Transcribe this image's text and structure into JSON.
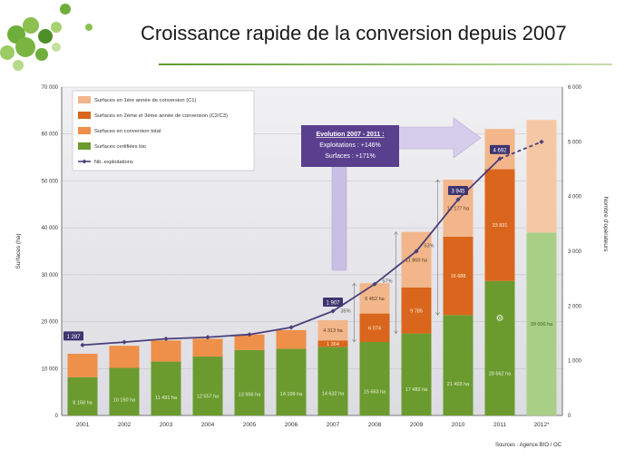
{
  "slide": {
    "title": "Croissance rapide de la conversion depuis 2007",
    "source": "Sources : Agence BIO / OC",
    "logo": "green-leaf-cluster"
  },
  "chart_data": {
    "type": "bar",
    "stacked": true,
    "categories": [
      "2001",
      "2002",
      "2003",
      "2004",
      "2005",
      "2006",
      "2007",
      "2008",
      "2009",
      "2010",
      "2011",
      "2012*"
    ],
    "ylabel": "Surfaces (ha)",
    "y2label": "Nombre d'opérateurs",
    "ylim": [
      0,
      70000
    ],
    "y2lim": [
      0,
      6000
    ],
    "yticks": [
      "0",
      "10 000",
      "20 000",
      "30 000",
      "40 000",
      "50 000",
      "60 000",
      "70 000"
    ],
    "y2ticks": [
      "0",
      "1 000",
      "2 000",
      "3 000",
      "4 000",
      "5 000",
      "6 000"
    ],
    "legend": {
      "placement": "top-left",
      "items": [
        {
          "label": "Surfaces en 1ère année de conversion (C1)",
          "color": "#f2b68a"
        },
        {
          "label": "Surfaces en 2ème et 3ème année de conversion (C2/C3)",
          "color": "#d9661c"
        },
        {
          "label": "Surfaces en conversion total",
          "color": "#ee8f4a"
        },
        {
          "label": "Surfaces certifiées bio",
          "color": "#6b9b2f"
        },
        {
          "label": "Nb. exploitations",
          "color": "#4a3f7a"
        }
      ]
    },
    "series": [
      {
        "key": "bio",
        "color": "#6b9b2f",
        "values": [
          8158,
          10150,
          11491,
          12557,
          13956,
          14199,
          14632,
          15663,
          17482,
          21403,
          28662,
          39000
        ],
        "labels": [
          "8 158 ha",
          "10 150 ha",
          "11 491 ha",
          "12 557 ha",
          "13 956 ha",
          "14 199 ha",
          "14 632 ha",
          "15 663 ha",
          "17 482 ha",
          "21 403 ha",
          "28 662 ha",
          "39 000 ha"
        ]
      },
      {
        "key": "c2c3",
        "color": "#d9661c",
        "values": [
          0,
          0,
          0,
          0,
          0,
          0,
          1364,
          6074,
          9785,
          16688,
          23831,
          0
        ],
        "labels": [
          "",
          "",
          "",
          "",
          "",
          "",
          "1 364",
          "6 074",
          "9 785",
          "16 688",
          "23 831",
          ""
        ]
      },
      {
        "key": "c1",
        "color": "#f2b68a",
        "values": [
          0,
          0,
          0,
          0,
          0,
          0,
          4313,
          6452,
          11869,
          12177,
          8562,
          0
        ],
        "labels": [
          "",
          "",
          "",
          "",
          "",
          "",
          "4 313 ha",
          "6 452 ha",
          "11 869 ha",
          "12 177 ha",
          "8 562 ha",
          ""
        ]
      },
      {
        "key": "conv_total",
        "color": "#ee8f4a",
        "values": [
          5000,
          4700,
          4500,
          3800,
          3300,
          4000,
          0,
          0,
          0,
          0,
          0,
          0
        ]
      }
    ],
    "total_2012": 63000,
    "line": {
      "name": "Nb. exploitations",
      "color": "#4a3f7a",
      "values": [
        1287,
        1340,
        1400,
        1430,
        1480,
        1610,
        1907,
        2400,
        3000,
        3945,
        4692,
        5000
      ],
      "labels": [
        "1 287",
        "",
        "",
        "",
        "",
        "",
        "1 907",
        "",
        "",
        "3 945",
        "4 692",
        ""
      ],
      "dashed_last": true
    },
    "percent_annotations": [
      {
        "year": "2008",
        "text": "35%"
      },
      {
        "year": "2009",
        "text": "57%"
      },
      {
        "year": "2010",
        "text": "53%"
      }
    ],
    "callout": {
      "title": "Evolution 2007 - 2011 :",
      "lines": [
        "Exploitations : +146%",
        "Surfaces : +171%"
      ]
    }
  }
}
